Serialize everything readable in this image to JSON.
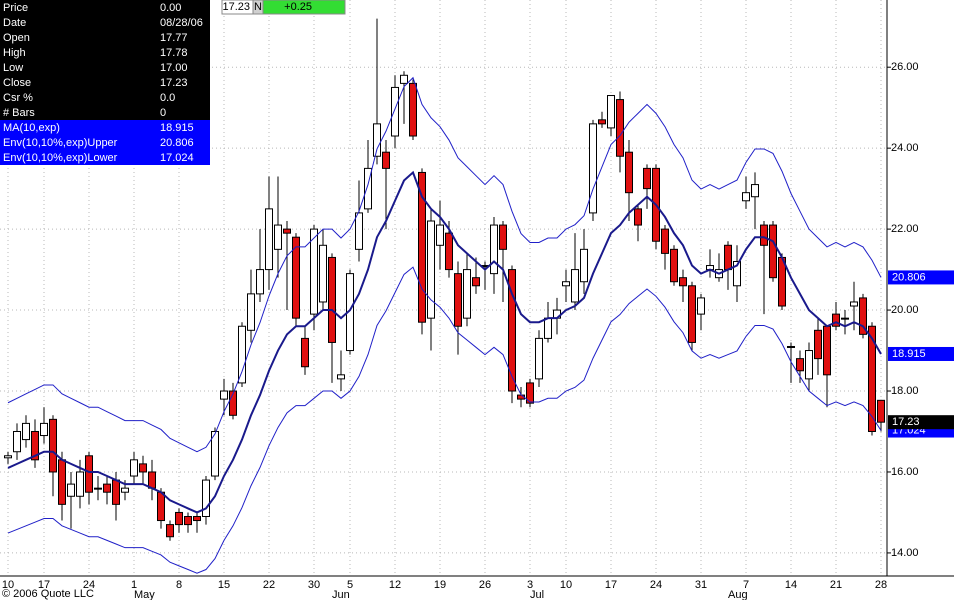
{
  "chart_data": {
    "type": "candlestick",
    "categories": [
      "10",
      null,
      null,
      null,
      "17",
      null,
      null,
      null,
      null,
      "24",
      null,
      null,
      null,
      null,
      "1",
      null,
      null,
      null,
      null,
      "8",
      null,
      null,
      null,
      null,
      "15",
      null,
      null,
      null,
      null,
      "22",
      null,
      null,
      null,
      null,
      "30",
      null,
      null,
      null,
      "5",
      null,
      null,
      null,
      null,
      "12",
      null,
      null,
      null,
      null,
      "19",
      null,
      null,
      null,
      null,
      "26",
      null,
      null,
      null,
      null,
      "3",
      null,
      null,
      null,
      "10",
      null,
      null,
      null,
      null,
      "17",
      null,
      null,
      null,
      null,
      "24",
      null,
      null,
      null,
      null,
      "31",
      null,
      null,
      null,
      null,
      "7",
      null,
      null,
      null,
      null,
      "14",
      null,
      null,
      null,
      null,
      "21",
      null,
      null,
      null,
      null,
      "28"
    ],
    "months": [
      null,
      null,
      null,
      null,
      null,
      null,
      null,
      null,
      null,
      null,
      null,
      null,
      null,
      null,
      "May",
      null,
      null,
      null,
      null,
      null,
      null,
      null,
      null,
      null,
      null,
      null,
      null,
      null,
      null,
      null,
      null,
      null,
      null,
      null,
      null,
      null,
      "Jun",
      null,
      null,
      null,
      null,
      null,
      null,
      null,
      null,
      null,
      null,
      null,
      null,
      null,
      null,
      null,
      null,
      null,
      null,
      null,
      null,
      null,
      "Jul",
      null,
      null,
      null,
      null,
      null,
      null,
      null,
      null,
      null,
      null,
      null,
      null,
      null,
      null,
      null,
      null,
      null,
      null,
      null,
      null,
      null,
      "Aug",
      null,
      null,
      null,
      null,
      null,
      null,
      null,
      null,
      null,
      null,
      null,
      null,
      null,
      null,
      null,
      null,
      null,
      null,
      null
    ],
    "open": [
      16.35,
      16.5,
      16.8,
      17.0,
      16.9,
      17.3,
      16.3,
      15.4,
      15.4,
      16.4,
      15.6,
      15.7,
      15.8,
      15.5,
      15.9,
      16.2,
      16.0,
      15.5,
      14.7,
      15.0,
      14.9,
      14.9,
      14.9,
      15.9,
      17.8,
      18.0,
      18.2,
      19.5,
      20.4,
      21.0,
      21.5,
      22.0,
      21.8,
      19.3,
      19.9,
      20.2,
      21.3,
      18.3,
      19.0,
      21.5,
      22.5,
      23.8,
      23.9,
      24.3,
      25.6,
      25.6,
      23.4,
      19.8,
      21.6,
      21.9,
      20.9,
      19.8,
      20.8,
      21.1,
      20.9,
      22.1,
      21.0,
      17.9,
      18.2,
      18.3,
      19.3,
      19.8,
      20.6,
      20.2,
      20.7,
      22.4,
      24.7,
      24.5,
      25.2,
      23.9,
      22.5,
      23.5,
      23.5,
      22.0,
      21.5,
      20.8,
      20.6,
      19.9,
      21.0,
      20.8,
      21.6,
      20.6,
      22.7,
      22.8,
      22.1,
      22.1,
      21.3,
      19.1,
      18.8,
      18.3,
      19.5,
      19.6,
      19.9,
      19.8,
      20.1,
      20.3,
      19.6,
      17.77
    ],
    "high": [
      16.5,
      17.2,
      17.4,
      17.3,
      17.6,
      17.4,
      16.5,
      16.0,
      16.3,
      16.5,
      15.9,
      15.9,
      16.0,
      15.8,
      16.5,
      16.4,
      16.3,
      15.6,
      14.8,
      15.1,
      15.0,
      15.0,
      15.9,
      17.1,
      18.3,
      18.2,
      19.7,
      21.0,
      22.0,
      23.3,
      23.3,
      22.2,
      21.9,
      19.6,
      22.1,
      22.0,
      21.4,
      19.0,
      21.0,
      23.2,
      24.2,
      27.2,
      24.2,
      25.8,
      25.9,
      25.7,
      23.5,
      22.5,
      22.7,
      22.2,
      21.2,
      21.4,
      21.3,
      21.2,
      22.3,
      22.2,
      21.1,
      18.1,
      18.3,
      19.5,
      20.2,
      20.3,
      21.0,
      21.9,
      22.0,
      24.7,
      24.9,
      25.3,
      25.4,
      24.2,
      22.6,
      23.6,
      23.6,
      22.1,
      21.6,
      21.0,
      20.7,
      20.4,
      21.5,
      21.4,
      21.7,
      21.6,
      23.3,
      23.4,
      22.2,
      22.2,
      21.4,
      19.2,
      19.0,
      19.2,
      19.8,
      19.6,
      20.2,
      20.0,
      20.7,
      20.4,
      19.7,
      17.78
    ],
    "low": [
      16.2,
      16.3,
      16.6,
      16.1,
      16.7,
      15.4,
      14.8,
      14.6,
      15.1,
      15.2,
      15.3,
      15.2,
      14.8,
      15.3,
      15.7,
      15.7,
      15.3,
      14.6,
      14.3,
      14.5,
      14.5,
      14.5,
      14.7,
      15.8,
      17.4,
      17.3,
      18.1,
      19.2,
      20.2,
      20.5,
      20.8,
      20.0,
      19.6,
      18.4,
      19.5,
      20.0,
      18.2,
      18.0,
      18.9,
      21.2,
      22.4,
      23.6,
      22.0,
      24.0,
      24.6,
      24.2,
      19.4,
      19.0,
      21.0,
      20.8,
      18.9,
      19.6,
      20.4,
      20.5,
      20.4,
      20.2,
      17.7,
      17.6,
      17.6,
      18.1,
      19.2,
      19.4,
      20.2,
      20.0,
      20.4,
      22.2,
      24.5,
      24.3,
      23.4,
      22.2,
      21.7,
      22.5,
      21.5,
      21.0,
      20.6,
      20.2,
      19.0,
      19.5,
      20.8,
      20.7,
      20.5,
      20.2,
      22.5,
      22.0,
      19.9,
      20.7,
      20.0,
      18.2,
      18.2,
      18.0,
      18.4,
      17.6,
      19.5,
      19.4,
      19.5,
      19.3,
      16.9,
      17.0
    ],
    "close": [
      16.4,
      17.0,
      17.2,
      16.3,
      17.2,
      16.0,
      15.2,
      15.7,
      16.0,
      15.5,
      15.6,
      15.5,
      15.2,
      15.6,
      16.3,
      16.0,
      15.6,
      14.8,
      14.4,
      14.7,
      14.7,
      14.8,
      15.8,
      17.0,
      18.0,
      17.4,
      19.6,
      20.4,
      21.0,
      22.5,
      22.1,
      21.9,
      19.8,
      18.6,
      22.0,
      21.6,
      19.2,
      18.4,
      20.9,
      22.4,
      23.5,
      24.6,
      23.5,
      25.5,
      25.8,
      24.3,
      19.7,
      22.2,
      22.1,
      21.0,
      19.6,
      21.0,
      20.6,
      21.1,
      22.1,
      21.5,
      18.0,
      17.8,
      17.7,
      19.3,
      19.8,
      20.0,
      20.7,
      21.0,
      21.5,
      24.6,
      24.6,
      25.3,
      23.8,
      22.9,
      22.1,
      23.0,
      21.7,
      21.4,
      20.7,
      20.6,
      19.2,
      20.3,
      21.1,
      21.0,
      21.0,
      21.2,
      22.9,
      23.1,
      21.6,
      20.8,
      20.1,
      19.1,
      18.5,
      19.0,
      18.8,
      18.4,
      19.6,
      19.8,
      20.2,
      19.4,
      17.0,
      17.23
    ],
    "up_color": "#ffffff",
    "down_color": "#e01010",
    "outline_color": "#000000",
    "series": [
      {
        "name": "MA(10,exp)",
        "color": "#1a1a8c",
        "width": 2,
        "values": [
          16.1,
          16.2,
          16.3,
          16.4,
          16.5,
          16.5,
          16.3,
          16.2,
          16.1,
          16.0,
          16.0,
          15.9,
          15.8,
          15.7,
          15.7,
          15.7,
          15.6,
          15.5,
          15.3,
          15.2,
          15.1,
          15.0,
          15.1,
          15.4,
          15.9,
          16.3,
          16.8,
          17.4,
          17.9,
          18.5,
          19.0,
          19.4,
          19.6,
          19.6,
          19.8,
          20.0,
          20.0,
          19.8,
          20.0,
          20.4,
          21.0,
          21.8,
          22.2,
          22.7,
          23.2,
          23.4,
          22.8,
          22.5,
          22.3,
          22.0,
          21.6,
          21.4,
          21.2,
          21.0,
          21.2,
          21.0,
          20.4,
          19.9,
          19.7,
          19.7,
          19.8,
          19.8,
          20.0,
          20.1,
          20.3,
          20.9,
          21.4,
          21.9,
          22.1,
          22.4,
          22.6,
          22.8,
          22.6,
          22.3,
          21.9,
          21.6,
          21.1,
          20.9,
          21.0,
          20.9,
          21.0,
          21.1,
          21.5,
          21.8,
          21.8,
          21.7,
          21.3,
          20.8,
          20.4,
          20.0,
          19.8,
          19.6,
          19.7,
          19.6,
          19.7,
          19.6,
          19.3,
          18.915
        ]
      },
      {
        "name": "Env(10,10%,exp)Upper",
        "color": "#2020c8",
        "width": 1,
        "values": [
          17.71,
          17.82,
          17.93,
          18.04,
          18.15,
          18.15,
          17.93,
          17.82,
          17.71,
          17.6,
          17.6,
          17.49,
          17.38,
          17.27,
          17.27,
          17.27,
          17.16,
          17.05,
          16.83,
          16.72,
          16.61,
          16.5,
          16.61,
          16.94,
          17.49,
          17.93,
          18.48,
          19.14,
          19.69,
          20.35,
          20.9,
          21.34,
          21.56,
          21.56,
          21.78,
          22.0,
          22.0,
          21.78,
          22.0,
          22.44,
          23.1,
          23.98,
          24.42,
          24.97,
          25.52,
          25.74,
          25.08,
          24.75,
          24.53,
          24.2,
          23.76,
          23.54,
          23.32,
          23.1,
          23.32,
          23.1,
          22.44,
          21.89,
          21.67,
          21.67,
          21.78,
          21.78,
          22.0,
          22.11,
          22.33,
          22.99,
          23.54,
          24.09,
          24.31,
          24.64,
          24.86,
          25.08,
          24.86,
          24.53,
          24.09,
          23.76,
          23.21,
          22.99,
          23.1,
          22.99,
          23.1,
          23.21,
          23.65,
          23.98,
          23.98,
          23.87,
          23.43,
          22.88,
          22.44,
          22.0,
          21.78,
          21.56,
          21.67,
          21.56,
          21.67,
          21.56,
          21.23,
          20.806
        ]
      },
      {
        "name": "Env(10,10%,exp)Lower",
        "color": "#2020c8",
        "width": 1,
        "values": [
          14.49,
          14.58,
          14.67,
          14.76,
          14.85,
          14.85,
          14.67,
          14.58,
          14.49,
          14.4,
          14.4,
          14.31,
          14.22,
          14.13,
          14.13,
          14.13,
          14.04,
          13.95,
          13.77,
          13.68,
          13.59,
          13.5,
          13.59,
          13.86,
          14.31,
          14.67,
          15.12,
          15.66,
          16.11,
          16.65,
          17.1,
          17.46,
          17.64,
          17.64,
          17.82,
          18.0,
          18.0,
          17.82,
          18.0,
          18.36,
          18.9,
          19.62,
          19.98,
          20.43,
          20.88,
          21.06,
          20.52,
          20.25,
          20.07,
          19.8,
          19.44,
          19.26,
          19.08,
          18.9,
          19.08,
          18.9,
          18.36,
          17.91,
          17.73,
          17.73,
          17.82,
          17.82,
          18.0,
          18.09,
          18.27,
          18.81,
          19.26,
          19.71,
          19.89,
          20.16,
          20.34,
          20.52,
          20.34,
          20.07,
          19.71,
          19.44,
          18.99,
          18.81,
          18.9,
          18.81,
          18.9,
          18.99,
          19.35,
          19.62,
          19.62,
          19.53,
          19.17,
          18.72,
          18.36,
          18.0,
          17.82,
          17.64,
          17.73,
          17.64,
          17.73,
          17.64,
          17.37,
          17.024
        ]
      }
    ],
    "ylim": [
      13.43,
      27.66
    ],
    "yticks": [
      {
        "value": 14,
        "label": "14.00"
      },
      {
        "value": 16,
        "label": "16.00"
      },
      {
        "value": 18,
        "label": "18.00"
      },
      {
        "value": 20,
        "label": "20.00"
      },
      {
        "value": 22,
        "label": "22.00"
      },
      {
        "value": 24,
        "label": "24.00"
      },
      {
        "value": 26,
        "label": "26.00"
      }
    ],
    "grid": true
  },
  "info_panel": [
    {
      "label": "Price",
      "value": "0.00"
    },
    {
      "label": "Date",
      "value": "08/28/06"
    },
    {
      "label": "Open",
      "value": "17.77"
    },
    {
      "label": "High",
      "value": "17.78"
    },
    {
      "label": "Low",
      "value": "17.00"
    },
    {
      "label": "Close",
      "value": "17.23"
    },
    {
      "label": "Csr %",
      "value": "0.0"
    },
    {
      "label": "# Bars",
      "value": "0"
    }
  ],
  "quote_bar": {
    "last": "17.23",
    "flag": "N",
    "change": "+0.25"
  },
  "copyright": "© 2006 Quote LLC"
}
